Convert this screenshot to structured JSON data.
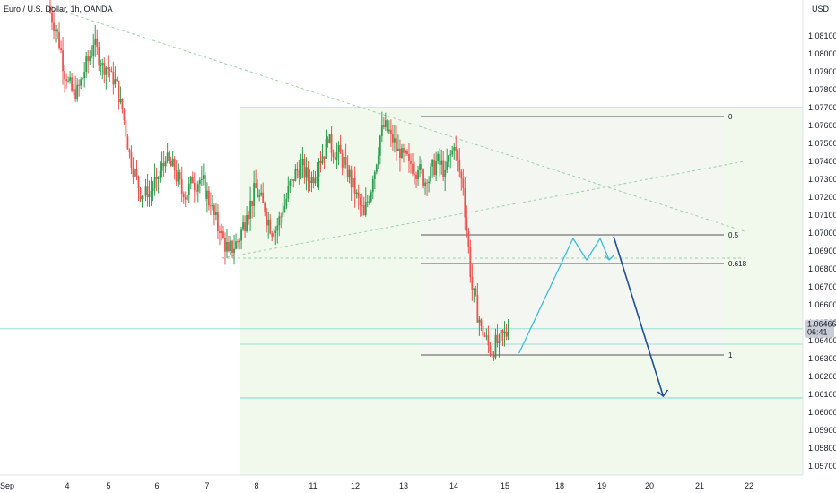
{
  "header": {
    "symbol": "Euro / U.S. Dollar, 1h, OANDA",
    "currency": "USD"
  },
  "price_tag": {
    "price": "1.06466",
    "countdown": "06:41"
  },
  "colors": {
    "up": "#26a69a",
    "up_body": "#2e9e4f",
    "down": "#ef5350",
    "zone_fill": "#eaf6e4",
    "teal_line": "#80d8d0",
    "fib_line": "#555555",
    "projection_teal": "#3dbdd4",
    "projection_navy": "#1f4e9e",
    "dashed_trend": "#9ccfa6",
    "axis_bg": "#ffffff",
    "price_tag_bg": "#c8cdd6"
  },
  "chart_data": {
    "type": "candlestick",
    "instrument": "Euro / U.S. Dollar",
    "timeframe": "1h",
    "source": "OANDA",
    "x_ticks": [
      "Sep",
      "4",
      "5",
      "6",
      "7",
      "8",
      "11",
      "12",
      "13",
      "14",
      "15",
      "18",
      "19",
      "20",
      "21",
      "22"
    ],
    "y_ticks": [
      "1.08100",
      "1.08000",
      "1.07900",
      "1.07800",
      "1.07700",
      "1.07600",
      "1.07500",
      "1.07400",
      "1.07300",
      "1.07200",
      "1.07100",
      "1.07000",
      "1.06900",
      "1.06800",
      "1.06700",
      "1.06600",
      "1.06500",
      "1.06400",
      "1.06300",
      "1.06200",
      "1.06100",
      "1.06000",
      "1.05900",
      "1.05800",
      "1.05700"
    ],
    "ylim": [
      1.0566,
      1.0826
    ],
    "last_price": 1.06466,
    "price_path": [
      [
        0,
        1.0826
      ],
      [
        1,
        1.0812
      ],
      [
        2,
        1.0785
      ],
      [
        3,
        1.0775
      ],
      [
        4,
        1.079
      ],
      [
        5,
        1.0805
      ],
      [
        6,
        1.0795
      ],
      [
        7,
        1.079
      ],
      [
        8,
        1.0775
      ],
      [
        9,
        1.0745
      ],
      [
        10,
        1.0725
      ],
      [
        11,
        1.072
      ],
      [
        12,
        1.073
      ],
      [
        13,
        1.074
      ],
      [
        14,
        1.0735
      ],
      [
        15,
        1.072
      ],
      [
        16,
        1.0728
      ],
      [
        17,
        1.073
      ],
      [
        18,
        1.0715
      ],
      [
        19,
        1.07
      ],
      [
        20,
        1.069
      ],
      [
        21,
        1.0695
      ],
      [
        22,
        1.071
      ],
      [
        23,
        1.0725
      ],
      [
        24,
        1.0712
      ],
      [
        25,
        1.07
      ],
      [
        26,
        1.0712
      ],
      [
        27,
        1.073
      ],
      [
        28,
        1.0738
      ],
      [
        29,
        1.0728
      ],
      [
        30,
        1.074
      ],
      [
        31,
        1.075
      ],
      [
        32,
        1.0745
      ],
      [
        33,
        1.0738
      ],
      [
        34,
        1.0722
      ],
      [
        35,
        1.071
      ],
      [
        36,
        1.073
      ],
      [
        37,
        1.076
      ],
      [
        38,
        1.0755
      ],
      [
        39,
        1.0742
      ],
      [
        40,
        1.074
      ],
      [
        41,
        1.0735
      ],
      [
        42,
        1.0728
      ],
      [
        43,
        1.074
      ],
      [
        44,
        1.0735
      ],
      [
        45,
        1.0748
      ],
      [
        46,
        1.0725
      ],
      [
        47,
        1.0668
      ],
      [
        48,
        1.0648
      ],
      [
        49,
        1.0634
      ],
      [
        50,
        1.064
      ],
      [
        51,
        1.0645
      ]
    ],
    "zones": {
      "upper_level": 1.077,
      "lower_level": 1.0608,
      "current_level": 1.06466
    },
    "fibonacci": {
      "levels": [
        {
          "label": "0",
          "price": 1.0765
        },
        {
          "label": "0.5",
          "price": 1.0699
        },
        {
          "label": "0.618",
          "price": 1.0683
        },
        {
          "label": "1",
          "price": 1.0632
        }
      ]
    },
    "trendlines": [
      {
        "from": [
          0,
          1.0826
        ],
        "to": [
          77,
          1.0701
        ]
      },
      {
        "from": [
          19,
          1.0686
        ],
        "to": [
          77,
          1.074
        ]
      },
      {
        "from": [
          19,
          1.0686
        ],
        "to": [
          77,
          1.0686
        ]
      }
    ],
    "projection": {
      "teal_path": [
        [
          52,
          1.0633
        ],
        [
          58,
          1.0697
        ],
        [
          59.5,
          1.0685
        ],
        [
          61,
          1.0697
        ],
        [
          62,
          1.0685
        ]
      ],
      "navy_path": [
        [
          62.5,
          1.0698
        ],
        [
          68,
          1.0609
        ]
      ]
    }
  }
}
